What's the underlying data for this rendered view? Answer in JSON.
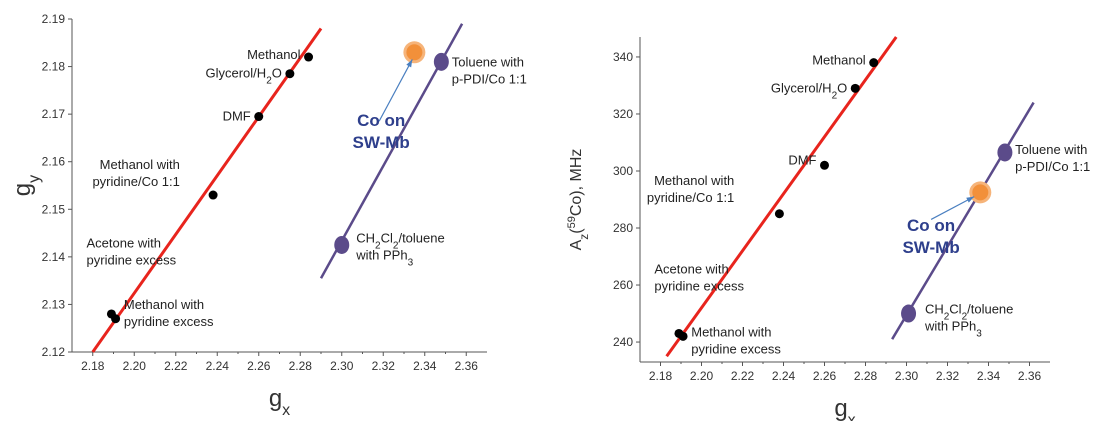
{
  "chart_data": [
    {
      "type": "scatter",
      "xlabel": "g",
      "xlabel_sub": "x",
      "ylabel": "g",
      "ylabel_sub": "y",
      "xlim": [
        2.17,
        2.37
      ],
      "ylim": [
        2.12,
        2.19
      ],
      "xticks": [
        2.18,
        2.2,
        2.22,
        2.24,
        2.26,
        2.28,
        2.3,
        2.32,
        2.34,
        2.36
      ],
      "xtick_labels": [
        "2.18",
        "2.20",
        "2.22",
        "2.24",
        "2.26",
        "2.28",
        "2.30",
        "2.32",
        "2.34",
        "2.36"
      ],
      "yticks": [
        2.12,
        2.13,
        2.14,
        2.15,
        2.16,
        2.17,
        2.18,
        2.19
      ],
      "ytick_labels": [
        "2.12",
        "2.13",
        "2.14",
        "2.15",
        "2.16",
        "2.17",
        "2.18",
        "2.19"
      ],
      "grid": false,
      "series": [
        {
          "marker": "black-dot",
          "color": "#000000",
          "points": [
            {
              "x": 2.284,
              "y": 2.182
            },
            {
              "x": 2.275,
              "y": 2.1785
            },
            {
              "x": 2.26,
              "y": 2.1695
            },
            {
              "x": 2.238,
              "y": 2.153
            },
            {
              "x": 2.189,
              "y": 2.128
            },
            {
              "x": 2.191,
              "y": 2.127
            }
          ]
        },
        {
          "marker": "purple-ellipse",
          "color": "#5b4b8a",
          "points": [
            {
              "x": 2.348,
              "y": 2.181
            },
            {
              "x": 2.3,
              "y": 2.1425
            }
          ]
        },
        {
          "marker": "orange-circle",
          "color": "#f2903a",
          "points": [
            {
              "x": 2.335,
              "y": 2.183
            }
          ]
        }
      ],
      "fit_lines": [
        {
          "color": "#e8241d",
          "x": [
            2.18,
            2.29
          ],
          "y": [
            2.12,
            2.188
          ]
        },
        {
          "color": "#5b4b8a",
          "x": [
            2.29,
            2.358
          ],
          "y": [
            2.1355,
            2.189
          ]
        }
      ],
      "annotations": [
        {
          "text": "Methanol",
          "x": 2.284,
          "y": 2.182,
          "anchor": "end",
          "dx": -8,
          "dy": -2
        },
        {
          "text": "Glycerol/H",
          "sub": "2",
          "after": "O",
          "x": 2.275,
          "y": 2.1785,
          "anchor": "end",
          "dx": -8,
          "dy": 0
        },
        {
          "text": "DMF",
          "x": 2.26,
          "y": 2.1695,
          "anchor": "end",
          "dx": -8,
          "dy": 0
        },
        {
          "lines": [
            "Methanol with",
            "pyridine/Co 1:1"
          ],
          "x": 2.222,
          "y": 2.1585,
          "anchor": "end"
        },
        {
          "lines": [
            "Acetone with",
            "pyridine excess"
          ],
          "x": 2.177,
          "y": 2.142,
          "anchor": "start"
        },
        {
          "lines": [
            "Methanol with",
            "pyridine excess"
          ],
          "x": 2.195,
          "y": 2.129,
          "anchor": "start"
        },
        {
          "lines": [
            "Toluene with",
            "p-PDI/Co 1:1"
          ],
          "x": 2.353,
          "y": 2.18,
          "anchor": "start"
        },
        {
          "lines": [
            "CH2Cl2/toluene",
            "with PPh3"
          ],
          "x": 2.307,
          "y": 2.143,
          "anchor": "start"
        }
      ],
      "co_label": [
        "Co on",
        "SW-Mb"
      ],
      "co_label_pos": {
        "x": 2.319,
        "y": 2.1675
      },
      "arrow": {
        "from": {
          "x": 2.318,
          "y": 2.1685
        },
        "to": {
          "x": 2.334,
          "y": 2.1815
        }
      }
    },
    {
      "type": "scatter",
      "xlabel": "g",
      "xlabel_sub": "x",
      "ylabel": "A",
      "ylabel_sub": "z",
      "ylabel_sup": "59",
      "ylabel_after": "Co), MHz",
      "xlim": [
        2.17,
        2.37
      ],
      "ylim": [
        233,
        347
      ],
      "xticks": [
        2.18,
        2.2,
        2.22,
        2.24,
        2.26,
        2.28,
        2.3,
        2.32,
        2.34,
        2.36
      ],
      "xtick_labels": [
        "2.18",
        "2.20",
        "2.22",
        "2.24",
        "2.26",
        "2.28",
        "2.30",
        "2.32",
        "2.34",
        "2.36"
      ],
      "yticks": [
        240,
        260,
        280,
        300,
        320,
        340
      ],
      "ytick_labels": [
        "240",
        "260",
        "280",
        "300",
        "320",
        "340"
      ],
      "grid": false,
      "series": [
        {
          "marker": "black-dot",
          "color": "#000000",
          "points": [
            {
              "x": 2.284,
              "y": 338
            },
            {
              "x": 2.275,
              "y": 329
            },
            {
              "x": 2.26,
              "y": 302
            },
            {
              "x": 2.238,
              "y": 285
            },
            {
              "x": 2.189,
              "y": 243
            },
            {
              "x": 2.191,
              "y": 242
            }
          ]
        },
        {
          "marker": "purple-ellipse",
          "color": "#5b4b8a",
          "points": [
            {
              "x": 2.348,
              "y": 306.5
            },
            {
              "x": 2.301,
              "y": 250
            }
          ]
        },
        {
          "marker": "orange-circle",
          "color": "#f2903a",
          "points": [
            {
              "x": 2.336,
              "y": 292.5
            }
          ]
        }
      ],
      "fit_lines": [
        {
          "color": "#e8241d",
          "x": [
            2.183,
            2.295
          ],
          "y": [
            235,
            347
          ]
        },
        {
          "color": "#5b4b8a",
          "x": [
            2.293,
            2.362
          ],
          "y": [
            241,
            324
          ]
        }
      ],
      "annotations": [
        {
          "text": "Methanol",
          "x": 2.284,
          "y": 338,
          "anchor": "end",
          "dx": -8,
          "dy": -2
        },
        {
          "text": "Glycerol/H",
          "sub": "2",
          "after": "O",
          "x": 2.275,
          "y": 329,
          "anchor": "end",
          "dx": -8,
          "dy": 0
        },
        {
          "text": "DMF",
          "x": 2.26,
          "y": 302,
          "anchor": "end",
          "dx": -8,
          "dy": -5
        },
        {
          "lines": [
            "Methanol with",
            "pyridine/Co 1:1"
          ],
          "x": 2.216,
          "y": 295,
          "anchor": "end"
        },
        {
          "lines": [
            "Acetone with",
            "pyridine excess"
          ],
          "x": 2.177,
          "y": 264,
          "anchor": "start"
        },
        {
          "lines": [
            "Methanol with",
            "pyridine excess"
          ],
          "x": 2.195,
          "y": 242,
          "anchor": "start"
        },
        {
          "lines": [
            "Toluene with",
            "p-PDI/Co 1:1"
          ],
          "x": 2.353,
          "y": 306,
          "anchor": "start"
        },
        {
          "lines": [
            "CH2Cl2/toluene",
            "with PPh3"
          ],
          "x": 2.309,
          "y": 250,
          "anchor": "start"
        }
      ],
      "co_label": [
        "Co on",
        "SW-Mb"
      ],
      "co_label_pos": {
        "x": 2.312,
        "y": 279
      },
      "arrow": {
        "from": {
          "x": 2.312,
          "y": 283
        },
        "to": {
          "x": 2.333,
          "y": 291
        }
      }
    }
  ]
}
